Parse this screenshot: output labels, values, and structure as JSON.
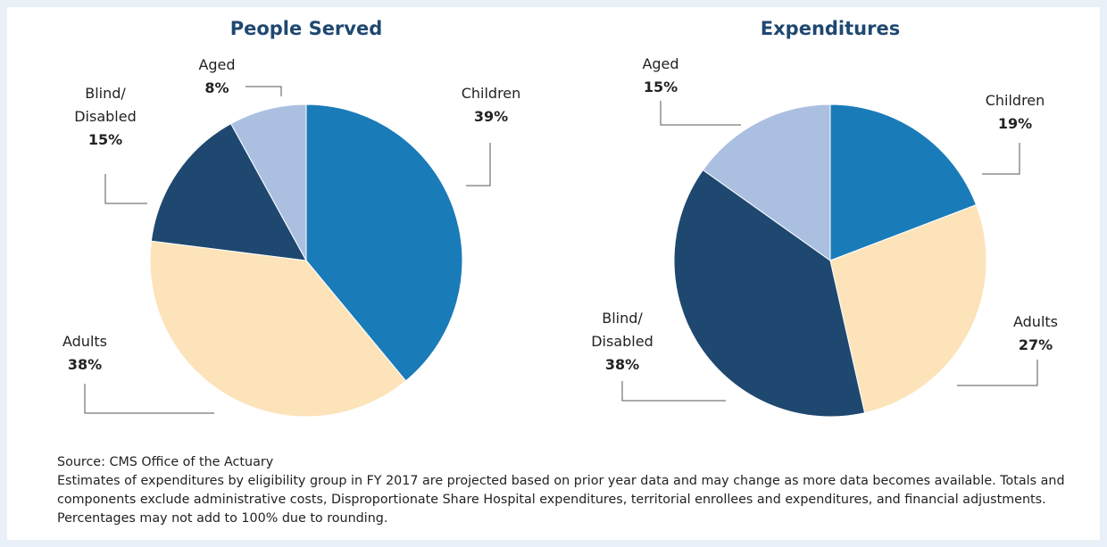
{
  "chart_data": [
    {
      "type": "pie",
      "title": "People Served",
      "categories": [
        "Children",
        "Adults",
        "Blind/ Disabled",
        "Aged"
      ],
      "values": [
        39,
        38,
        15,
        8
      ],
      "value_labels": [
        "39%",
        "38%",
        "15%",
        "8%"
      ],
      "colors": [
        "#1a7bb9",
        "#fde3b9",
        "#1f4870",
        "#abc0e1"
      ]
    },
    {
      "type": "pie",
      "title": "Expenditures",
      "categories": [
        "Children",
        "Adults",
        "Blind/ Disabled",
        "Aged"
      ],
      "values": [
        19,
        27,
        38,
        15
      ],
      "value_labels": [
        "19%",
        "27%",
        "38%",
        "15%"
      ],
      "colors": [
        "#1a7bb9",
        "#fde3b9",
        "#1f4870",
        "#abc0e1"
      ]
    }
  ],
  "notes": {
    "source": "Source: CMS Office of the Actuary",
    "text": "Estimates of expenditures by eligibility group in FY 2017 are projected based on prior year data and may change as more data becomes available. Totals and components exclude administrative costs, Disproportionate Share Hospital expenditures, territorial enrollees and expenditures, and financial adjustments. Percentages may not add to 100% due to rounding."
  }
}
